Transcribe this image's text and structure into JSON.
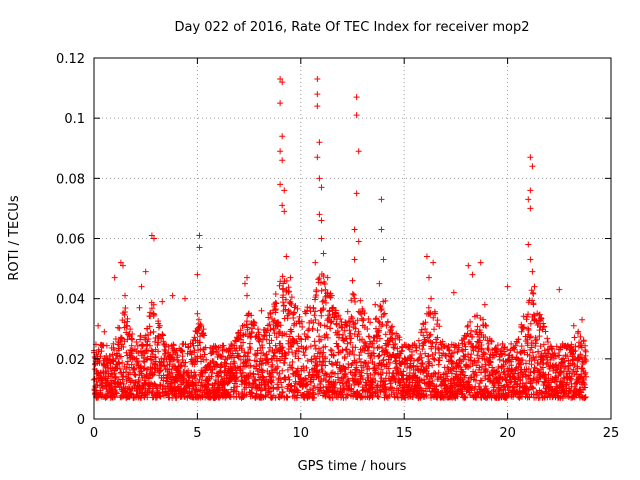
{
  "chart_data": {
    "type": "scatter",
    "title": "Day 022 of 2016, Rate Of TEC Index for receiver mop2",
    "xlabel": "GPS time / hours",
    "ylabel": "ROTI / TECUs",
    "xlim": [
      0,
      25
    ],
    "ylim": [
      0,
      0.12
    ],
    "grid": true,
    "xticks": [
      0,
      5,
      10,
      15,
      20,
      25
    ],
    "xtick_labels": [
      "0",
      "5",
      "10",
      "15",
      "20",
      "25"
    ],
    "yticks": [
      0,
      0.02,
      0.04,
      0.06,
      0.08,
      0.1,
      0.12
    ],
    "ytick_labels": [
      "0",
      "0.02",
      "0.04",
      "0.06",
      "0.08",
      "0.1",
      "0.12"
    ],
    "marker": "plus",
    "series": [
      {
        "name": "ROTI",
        "color": "#ff0000",
        "x_range": [
          0,
          23.8
        ],
        "baseline": {
          "typical_min": 0.007,
          "typical_max": 0.025
        },
        "points": [
          [
            0.2,
            0.031
          ],
          [
            0.5,
            0.029
          ],
          [
            1.0,
            0.047
          ],
          [
            1.3,
            0.052
          ],
          [
            1.4,
            0.051
          ],
          [
            1.5,
            0.041
          ],
          [
            2.2,
            0.037
          ],
          [
            2.3,
            0.044
          ],
          [
            2.5,
            0.049
          ],
          [
            2.8,
            0.061
          ],
          [
            2.9,
            0.06
          ],
          [
            3.3,
            0.039
          ],
          [
            3.8,
            0.041
          ],
          [
            4.4,
            0.04
          ],
          [
            5.0,
            0.035
          ],
          [
            5.1,
            0.061
          ],
          [
            5.1,
            0.057
          ],
          [
            5.0,
            0.048
          ],
          [
            7.3,
            0.045
          ],
          [
            7.4,
            0.041
          ],
          [
            7.4,
            0.047
          ],
          [
            8.1,
            0.036
          ],
          [
            9.0,
            0.113
          ],
          [
            9.1,
            0.112
          ],
          [
            9.0,
            0.105
          ],
          [
            9.1,
            0.094
          ],
          [
            9.0,
            0.089
          ],
          [
            9.1,
            0.086
          ],
          [
            9.0,
            0.078
          ],
          [
            9.2,
            0.076
          ],
          [
            9.1,
            0.071
          ],
          [
            9.2,
            0.069
          ],
          [
            9.3,
            0.054
          ],
          [
            9.5,
            0.047
          ],
          [
            10.8,
            0.113
          ],
          [
            10.8,
            0.108
          ],
          [
            10.8,
            0.104
          ],
          [
            10.9,
            0.092
          ],
          [
            10.8,
            0.087
          ],
          [
            10.9,
            0.08
          ],
          [
            11.0,
            0.077
          ],
          [
            10.9,
            0.068
          ],
          [
            11.0,
            0.066
          ],
          [
            11.0,
            0.06
          ],
          [
            11.1,
            0.055
          ],
          [
            10.7,
            0.052
          ],
          [
            11.3,
            0.047
          ],
          [
            11.5,
            0.041
          ],
          [
            12.7,
            0.107
          ],
          [
            12.7,
            0.101
          ],
          [
            12.8,
            0.089
          ],
          [
            12.7,
            0.075
          ],
          [
            12.6,
            0.063
          ],
          [
            12.8,
            0.059
          ],
          [
            12.6,
            0.053
          ],
          [
            12.5,
            0.046
          ],
          [
            13.9,
            0.073
          ],
          [
            13.9,
            0.063
          ],
          [
            14.0,
            0.053
          ],
          [
            13.8,
            0.045
          ],
          [
            13.6,
            0.038
          ],
          [
            16.1,
            0.054
          ],
          [
            16.2,
            0.047
          ],
          [
            16.4,
            0.052
          ],
          [
            16.3,
            0.04
          ],
          [
            16.5,
            0.035
          ],
          [
            17.4,
            0.042
          ],
          [
            18.1,
            0.051
          ],
          [
            18.3,
            0.048
          ],
          [
            18.7,
            0.052
          ],
          [
            18.9,
            0.038
          ],
          [
            20.0,
            0.044
          ],
          [
            21.1,
            0.087
          ],
          [
            21.2,
            0.084
          ],
          [
            21.1,
            0.076
          ],
          [
            21.0,
            0.073
          ],
          [
            21.1,
            0.07
          ],
          [
            21.0,
            0.058
          ],
          [
            21.1,
            0.053
          ],
          [
            21.2,
            0.049
          ],
          [
            21.3,
            0.044
          ],
          [
            22.5,
            0.043
          ],
          [
            23.2,
            0.031
          ],
          [
            23.6,
            0.033
          ]
        ],
        "bursts": [
          {
            "center": 1.5,
            "width": 0.6,
            "max": 0.038
          },
          {
            "center": 2.8,
            "width": 0.7,
            "max": 0.04
          },
          {
            "center": 5.1,
            "width": 0.5,
            "max": 0.034
          },
          {
            "center": 7.5,
            "width": 0.8,
            "max": 0.036
          },
          {
            "center": 9.2,
            "width": 1.2,
            "max": 0.05
          },
          {
            "center": 11.0,
            "width": 1.4,
            "max": 0.05
          },
          {
            "center": 12.7,
            "width": 1.0,
            "max": 0.046
          },
          {
            "center": 14.0,
            "width": 0.9,
            "max": 0.042
          },
          {
            "center": 16.3,
            "width": 0.7,
            "max": 0.04
          },
          {
            "center": 18.5,
            "width": 1.0,
            "max": 0.037
          },
          {
            "center": 21.2,
            "width": 0.8,
            "max": 0.045
          },
          {
            "center": 23.4,
            "width": 0.5,
            "max": 0.03
          }
        ]
      }
    ]
  }
}
